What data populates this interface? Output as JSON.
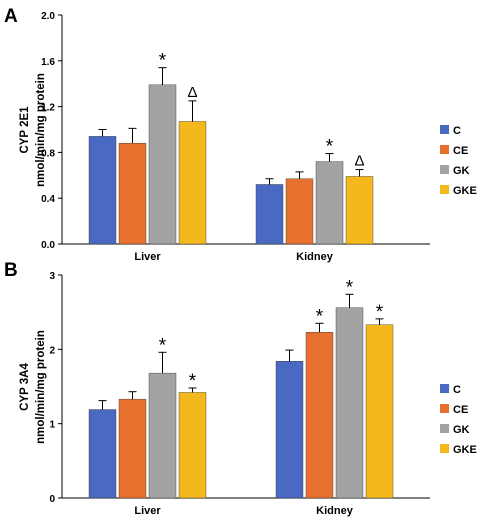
{
  "chart_data": [
    {
      "panel_label": "A",
      "type": "bar",
      "ylabel_line1": "CYP 2E1",
      "ylabel_line2": "nmol/min/mg protein",
      "ylim": [
        0,
        2.0
      ],
      "yticks": [
        "0.0",
        "0.4",
        "0.8",
        "1.2",
        "1.6",
        "2.0"
      ],
      "categories": [
        "Liver",
        "Kidney"
      ],
      "series": [
        {
          "name": "C",
          "color": "#4a69c2",
          "values": [
            0.94,
            0.52
          ],
          "errors": [
            0.06,
            0.05
          ],
          "marks": [
            "",
            ""
          ]
        },
        {
          "name": "CE",
          "color": "#e8702e",
          "values": [
            0.88,
            0.57
          ],
          "errors": [
            0.13,
            0.06
          ],
          "marks": [
            "",
            ""
          ]
        },
        {
          "name": "GK",
          "color": "#a3a3a3",
          "values": [
            1.39,
            0.72
          ],
          "errors": [
            0.15,
            0.07
          ],
          "marks": [
            "*",
            "*"
          ]
        },
        {
          "name": "GKE",
          "color": "#f4b81c",
          "values": [
            1.07,
            0.59
          ],
          "errors": [
            0.18,
            0.06
          ],
          "marks": [
            "Δ",
            "Δ"
          ]
        }
      ],
      "grid": false,
      "legend": "right"
    },
    {
      "panel_label": "B",
      "type": "bar",
      "ylabel_line1": "CYP 3A4",
      "ylabel_line2": "nmol/min/mg protein",
      "ylim": [
        0,
        3
      ],
      "yticks": [
        "0",
        "1",
        "2",
        "3"
      ],
      "categories": [
        "Liver",
        "Kidney"
      ],
      "series": [
        {
          "name": "C",
          "color": "#4a69c2",
          "values": [
            1.19,
            1.84
          ],
          "errors": [
            0.12,
            0.15
          ],
          "marks": [
            "",
            ""
          ]
        },
        {
          "name": "CE",
          "color": "#e8702e",
          "values": [
            1.33,
            2.23
          ],
          "errors": [
            0.1,
            0.12
          ],
          "marks": [
            "",
            "*"
          ]
        },
        {
          "name": "GK",
          "color": "#a3a3a3",
          "values": [
            1.68,
            2.56
          ],
          "errors": [
            0.28,
            0.18
          ],
          "marks": [
            "*",
            "*"
          ]
        },
        {
          "name": "GKE",
          "color": "#f4b81c",
          "values": [
            1.42,
            2.33
          ],
          "errors": [
            0.06,
            0.08
          ],
          "marks": [
            "*",
            "*"
          ]
        }
      ],
      "grid": false,
      "legend": "right"
    }
  ]
}
